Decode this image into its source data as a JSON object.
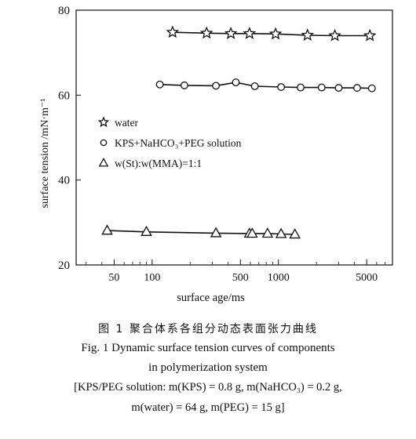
{
  "chart_data": {
    "type": "scatter",
    "xscale": "log",
    "xlim": [
      25,
      8000
    ],
    "ylim": [
      20,
      80
    ],
    "xlabel": "surface age/ms",
    "ylabel": "surface tension /mN·m⁻¹",
    "x_ticks": [
      {
        "value": 50,
        "label": "50"
      },
      {
        "value": 100,
        "label": "100"
      },
      {
        "value": 500,
        "label": "500"
      },
      {
        "value": 1000,
        "label": "1000"
      },
      {
        "value": 5000,
        "label": "5000"
      }
    ],
    "y_ticks": [
      {
        "value": 20,
        "label": "20"
      },
      {
        "value": 40,
        "label": "40"
      },
      {
        "value": 60,
        "label": "60"
      },
      {
        "value": 80,
        "label": "80"
      }
    ],
    "grid": false,
    "legend_position": "center-left",
    "series": [
      {
        "name": "water",
        "marker": "star",
        "points": [
          [
            145,
            74.8
          ],
          [
            270,
            74.6
          ],
          [
            420,
            74.5
          ],
          [
            590,
            74.5
          ],
          [
            950,
            74.4
          ],
          [
            1700,
            74.1
          ],
          [
            2800,
            74.0
          ],
          [
            5300,
            74.0
          ]
        ]
      },
      {
        "name": "KPS+NaHCO₃+PEG solution",
        "marker": "circle",
        "points": [
          [
            115,
            62.5
          ],
          [
            180,
            62.3
          ],
          [
            320,
            62.2
          ],
          [
            460,
            63.0
          ],
          [
            650,
            62.1
          ],
          [
            1050,
            61.9
          ],
          [
            1500,
            61.8
          ],
          [
            2200,
            61.8
          ],
          [
            3000,
            61.7
          ],
          [
            4200,
            61.7
          ],
          [
            5500,
            61.6
          ]
        ]
      },
      {
        "name": "w(St):w(MMA)=1:1",
        "marker": "triangle",
        "points": [
          [
            44,
            28.1
          ],
          [
            90,
            27.8
          ],
          [
            320,
            27.5
          ],
          [
            590,
            27.4
          ],
          [
            620,
            27.4
          ],
          [
            820,
            27.4
          ],
          [
            1050,
            27.3
          ],
          [
            1350,
            27.2
          ]
        ]
      }
    ]
  },
  "caption": {
    "cn": "图 1   聚合体系各组分动态表面张力曲线",
    "en_line1": "Fig. 1   Dynamic surface tension curves of components",
    "en_line2": "in polymerization system",
    "note_line1": "[KPS/PEG solution: m(KPS) = 0.8 g, m(NaHCO₃) = 0.2 g,",
    "note_line2": "m(water) = 64 g, m(PEG) = 15 g]"
  }
}
